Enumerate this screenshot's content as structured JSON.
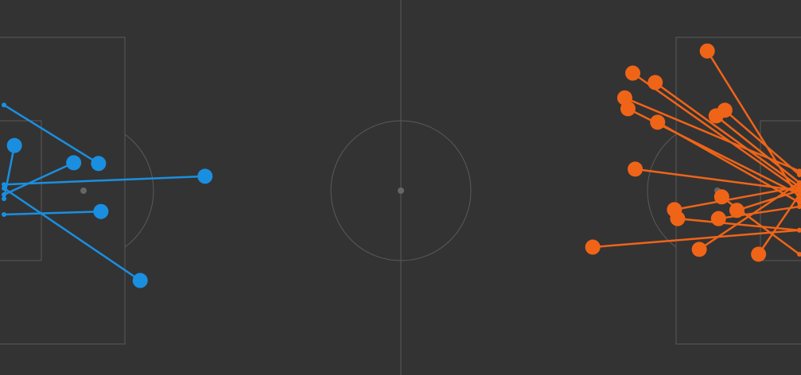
{
  "chart_data": {
    "type": "shotmap",
    "xlim": [
      0,
      100
    ],
    "ylim": [
      100,
      0
    ],
    "series": [
      {
        "color": "#1a8fe0",
        "x": [
          12.3,
          1.8,
          9.2,
          25.6,
          12.6,
          17.5
        ],
        "y": [
          43.6,
          38.8,
          43.4,
          47.0,
          56.4,
          74.8
        ],
        "end_x": [
          0.5,
          0.5,
          0.5,
          0.5,
          0.5,
          0.5
        ],
        "end_y": [
          28.0,
          53.0,
          51.9,
          49.2,
          57.2,
          50.2
        ]
      },
      {
        "color": "#f06418",
        "x": [
          88.3,
          79.0,
          81.8,
          78.0,
          78.4,
          90.5,
          89.4,
          82.1,
          79.3,
          90.1,
          84.2,
          84.6,
          92.0,
          89.7,
          74.0,
          87.3,
          94.7
        ],
        "y": [
          13.6,
          19.5,
          22.0,
          26.1,
          29.0,
          29.4,
          30.9,
          32.6,
          45.1,
          52.5,
          55.9,
          58.3,
          56.1,
          58.3,
          65.9,
          66.5,
          67.8
        ],
        "end_x": [
          99.8,
          99.8,
          99.8,
          99.8,
          99.8,
          99.8,
          99.8,
          99.8,
          99.8,
          99.8,
          99.8,
          99.8,
          99.8,
          99.8,
          99.8,
          99.8,
          99.8
        ],
        "end_y": [
          53.0,
          50.8,
          49.8,
          45.6,
          51.9,
          46.6,
          48.7,
          54.0,
          50.8,
          67.8,
          49.8,
          61.4,
          50.8,
          55.1,
          61.4,
          48.7,
          51.9
        ]
      }
    ]
  }
}
